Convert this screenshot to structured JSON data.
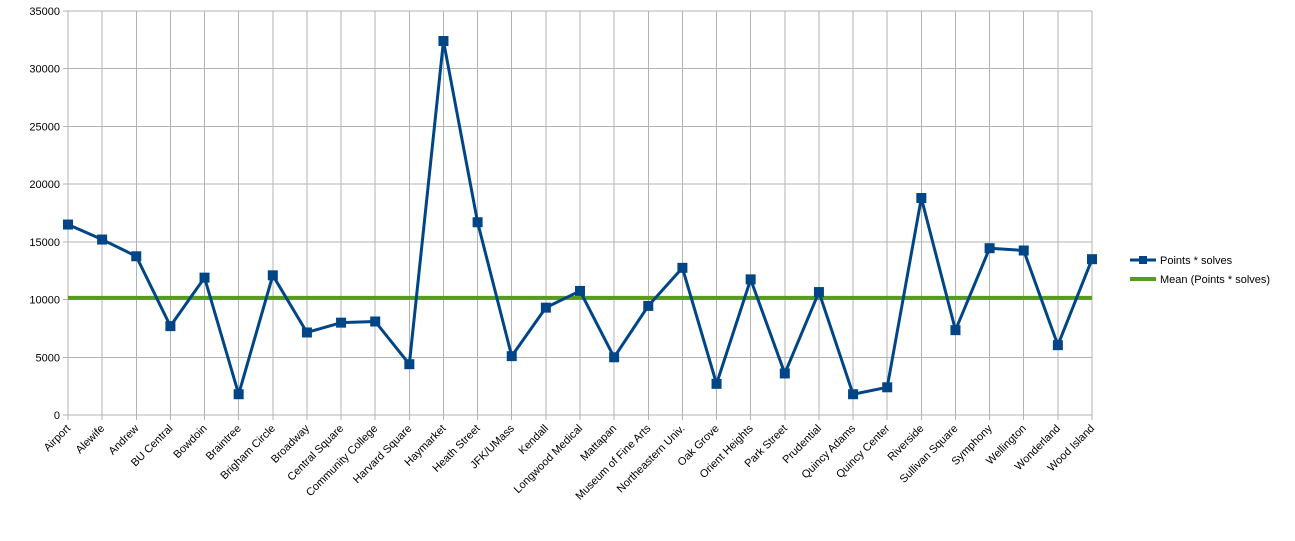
{
  "chart_data": {
    "type": "line",
    "title": "",
    "xlabel": "",
    "ylabel": "",
    "ylim": [
      0,
      35000
    ],
    "y_ticks": [
      "0",
      "5000",
      "10000",
      "15000",
      "20000",
      "25000",
      "30000",
      "35000"
    ],
    "grid": "vertical-and-horizontal",
    "legend_placement": "right",
    "categories": [
      "Airport",
      "Alewife",
      "Andrew",
      "BU Central",
      "Bowdoin",
      "Braintree",
      "Brigham Circle",
      "Broadway",
      "Central Square",
      "Community College",
      "Harvard Square",
      "Haymarket",
      "Heath Street",
      "JFK/UMass",
      "Kendall",
      "Longwood Medical",
      "Mattapan",
      "Museum of Fine Arts",
      "Northeastern Univ.",
      "Oak Grove",
      "Orient Heights",
      "Park Street",
      "Prudential",
      "Quincy Adams",
      "Quincy Center",
      "Riverside",
      "Sullivan Square",
      "Symphony",
      "Wellington",
      "Wonderland",
      "Wood Island"
    ],
    "series": [
      {
        "name": "Points * solves",
        "color": "#004586",
        "marker": "square",
        "values": [
          16500,
          15200,
          13750,
          7700,
          11900,
          1800,
          12100,
          7150,
          8000,
          8100,
          4400,
          32400,
          16700,
          5100,
          9300,
          10750,
          5000,
          9450,
          12750,
          2700,
          11750,
          3600,
          10650,
          1800,
          2400,
          18800,
          7350,
          14450,
          14250,
          6050,
          13500
        ]
      },
      {
        "name": "Mean (Points * solves)",
        "color": "#579d1c",
        "marker": "none",
        "values": [
          10150,
          10150,
          10150,
          10150,
          10150,
          10150,
          10150,
          10150,
          10150,
          10150,
          10150,
          10150,
          10150,
          10150,
          10150,
          10150,
          10150,
          10150,
          10150,
          10150,
          10150,
          10150,
          10150,
          10150,
          10150,
          10150,
          10150,
          10150,
          10150,
          10150,
          10150
        ]
      }
    ]
  }
}
